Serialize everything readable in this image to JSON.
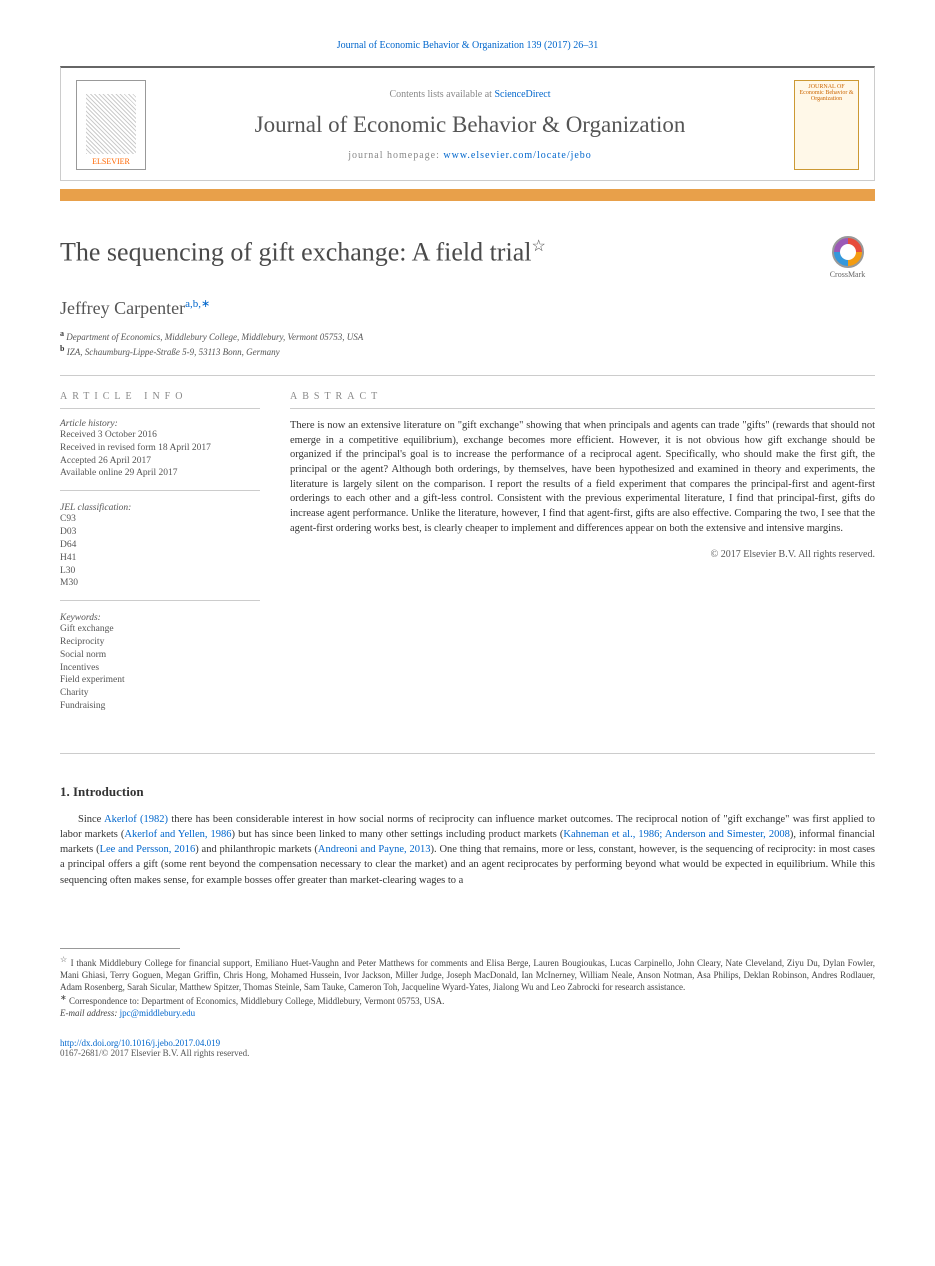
{
  "header": {
    "citation": "Journal of Economic Behavior & Organization 139 (2017) 26–31",
    "contents_prefix": "Contents lists available at ",
    "contents_link": "ScienceDirect",
    "journal_name": "Journal of Economic Behavior & Organization",
    "homepage_prefix": "journal homepage: ",
    "homepage_link": "www.elsevier.com/locate/jebo",
    "publisher_logo": "ELSEVIER",
    "cover_text": "JOURNAL OF Economic Behavior & Organization"
  },
  "article": {
    "title": "The sequencing of gift exchange: A field trial",
    "title_star": "☆",
    "crossmark_label": "CrossMark",
    "author_name": "Jeffrey Carpenter",
    "author_sup": "a,b,∗",
    "affiliations": [
      {
        "sup": "a",
        "text": "Department of Economics, Middlebury College, Middlebury, Vermont 05753, USA"
      },
      {
        "sup": "b",
        "text": "IZA, Schaumburg-Lippe-Straße 5-9, 53113 Bonn, Germany"
      }
    ]
  },
  "info": {
    "heading": "article info",
    "history_label": "Article history:",
    "history": [
      "Received 3 October 2016",
      "Received in revised form 18 April 2017",
      "Accepted 26 April 2017",
      "Available online 29 April 2017"
    ],
    "jel_label": "JEL classification:",
    "jel": [
      "C93",
      "D03",
      "D64",
      "H41",
      "L30",
      "M30"
    ],
    "keywords_label": "Keywords:",
    "keywords": [
      "Gift exchange",
      "Reciprocity",
      "Social norm",
      "Incentives",
      "Field experiment",
      "Charity",
      "Fundraising"
    ]
  },
  "abstract": {
    "heading": "abstract",
    "text": "There is now an extensive literature on \"gift exchange\" showing that when principals and agents can trade \"gifts\" (rewards that should not emerge in a competitive equilibrium), exchange becomes more efficient. However, it is not obvious how gift exchange should be organized if the principal's goal is to increase the performance of a reciprocal agent. Specifically, who should make the first gift, the principal or the agent? Although both orderings, by themselves, have been hypothesized and examined in theory and experiments, the literature is largely silent on the comparison. I report the results of a field experiment that compares the principal-first and agent-first orderings to each other and a gift-less control. Consistent with the previous experimental literature, I find that principal-first, gifts do increase agent performance. Unlike the literature, however, I find that agent-first, gifts are also effective. Comparing the two, I see that the agent-first ordering works best, is clearly cheaper to implement and differences appear on both the extensive and intensive margins.",
    "copyright": "© 2017 Elsevier B.V. All rights reserved."
  },
  "intro": {
    "heading": "1.  Introduction",
    "para_parts": [
      {
        "t": "text",
        "v": "Since "
      },
      {
        "t": "cite",
        "v": "Akerlof (1982)"
      },
      {
        "t": "text",
        "v": " there has been considerable interest in how social norms of reciprocity can influence market outcomes. The reciprocal notion of \"gift exchange\" was first applied to labor markets ("
      },
      {
        "t": "cite",
        "v": "Akerlof and Yellen, 1986"
      },
      {
        "t": "text",
        "v": ") but has since been linked to many other settings including product markets ("
      },
      {
        "t": "cite",
        "v": "Kahneman et al., 1986; Anderson and Simester, 2008"
      },
      {
        "t": "text",
        "v": "), informal financial markets ("
      },
      {
        "t": "cite",
        "v": "Lee and Persson, 2016"
      },
      {
        "t": "text",
        "v": ") and philanthropic markets ("
      },
      {
        "t": "cite",
        "v": "Andreoni and Payne, 2013"
      },
      {
        "t": "text",
        "v": "). One thing that remains, more or less, constant, however, is the sequencing of reciprocity: in most cases a principal offers a gift (some rent beyond the compensation necessary to clear the market) and an agent reciprocates by performing beyond what would be expected in equilibrium. While this sequencing often makes sense, for example bosses offer greater than market-clearing wages to a"
      }
    ]
  },
  "footnotes": {
    "thanks_sym": "☆",
    "thanks": "I thank Middlebury College for financial support, Emiliano Huet-Vaughn and Peter Matthews for comments and Elisa Berge, Lauren Bougioukas, Lucas Carpinello, John Cleary, Nate Cleveland, Ziyu Du, Dylan Fowler, Mani Ghiasi, Terry Goguen, Megan Griffin, Chris Hong, Mohamed Hussein, Ivor Jackson, Miller Judge, Joseph MacDonald, Ian McInerney, William Neale, Anson Notman, Asa Philips, Deklan Robinson, Andres Rodlauer, Adam Rosenberg, Sarah Sicular, Matthew Spitzer, Thomas Steinle, Sam Tauke, Cameron Toh, Jacqueline Wyard-Yates, Jialong Wu and Leo Zabrocki for research assistance.",
    "corr_sym": "∗",
    "corr": "Correspondence to: Department of Economics, Middlebury College, Middlebury, Vermont 05753, USA.",
    "email_label": "E-mail address: ",
    "email": "jpc@middlebury.edu"
  },
  "footer": {
    "doi": "http://dx.doi.org/10.1016/j.jebo.2017.04.019",
    "issn": "0167-2681/© 2017 Elsevier B.V. All rights reserved."
  },
  "colors": {
    "link": "#0066cc",
    "orange_bar": "#e8a04a",
    "publisher": "#ff6600",
    "text": "#333333",
    "muted": "#888888"
  }
}
